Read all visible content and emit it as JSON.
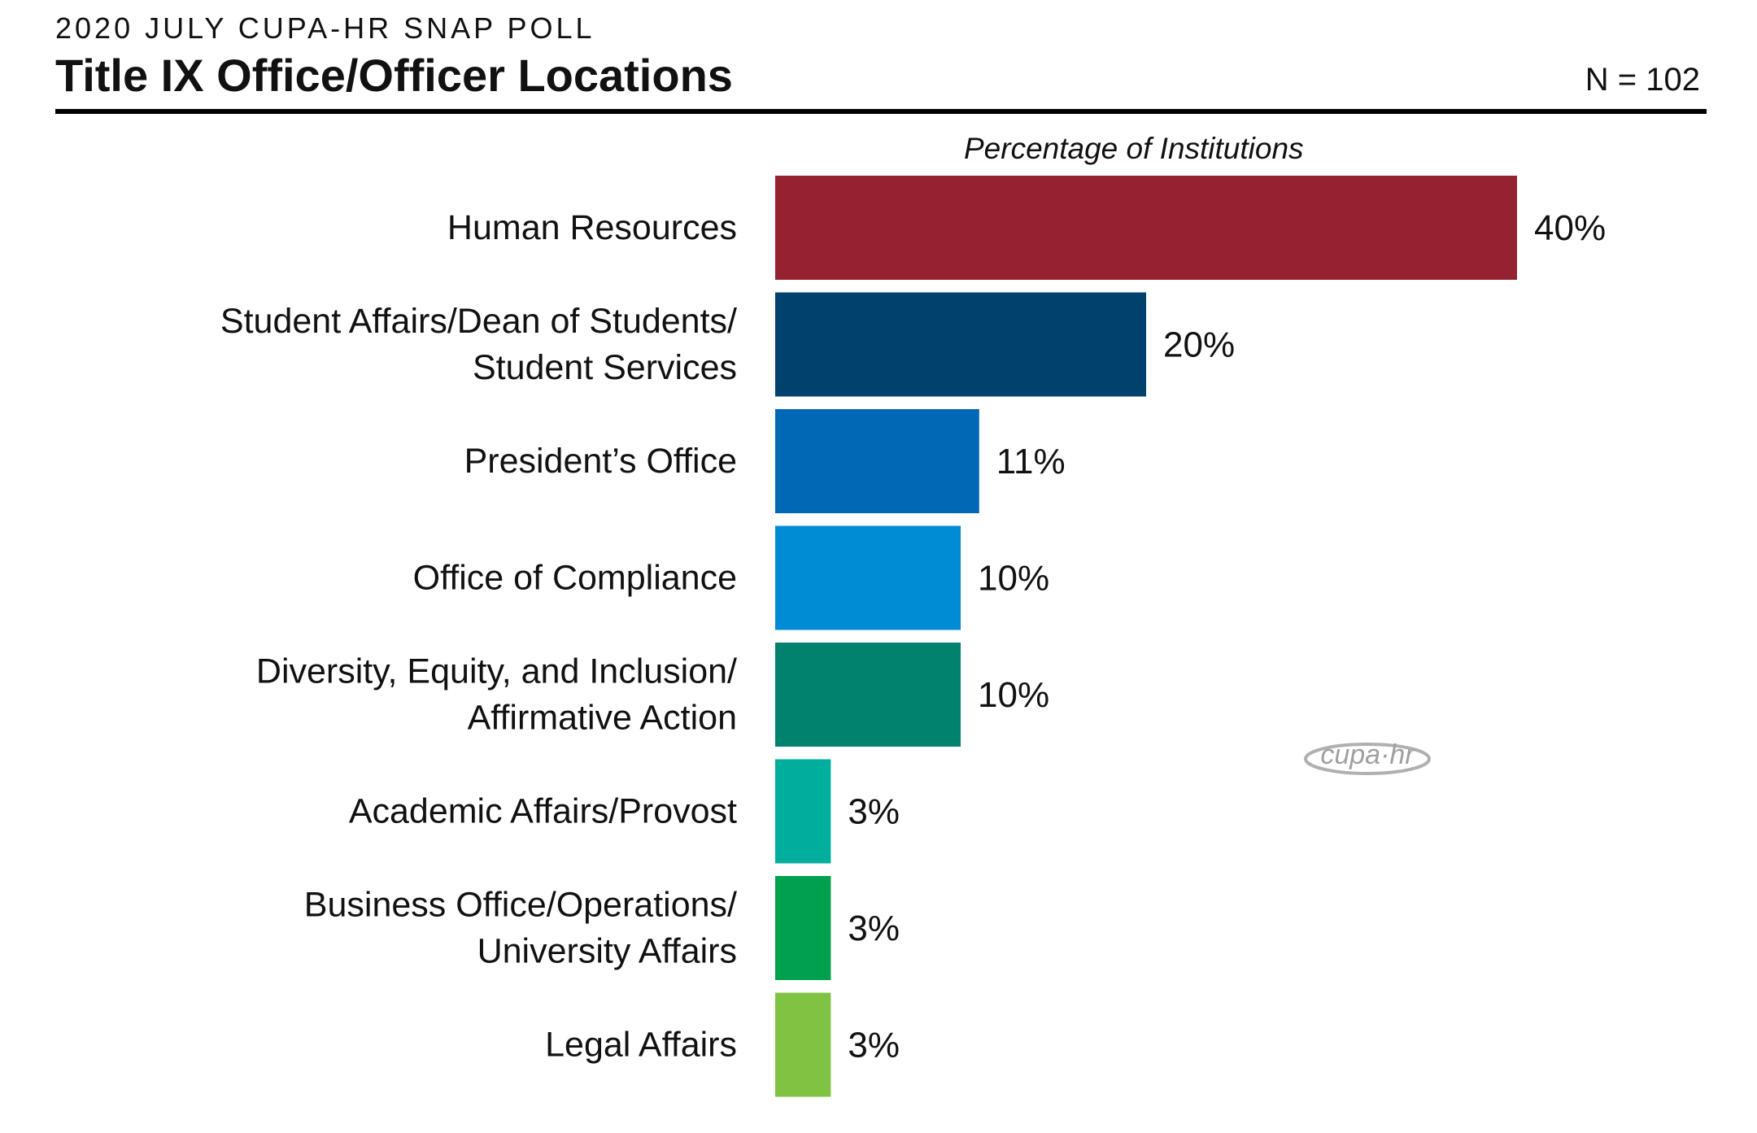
{
  "header": {
    "supertitle": "2020 JULY CUPA-HR SNAP POLL",
    "title": "Title IX Office/Officer Locations",
    "n_label": "N = 102"
  },
  "logo": {
    "text": "cupa·hr"
  },
  "chart_data": {
    "type": "bar",
    "orientation": "horizontal",
    "title": "Title IX Office/Officer Locations",
    "xlabel": "Percentage of Institutions",
    "ylabel": "",
    "xlim": [
      0,
      40
    ],
    "grid": false,
    "legend": "none",
    "categories": [
      [
        "Human Resources"
      ],
      [
        "Student Affairs/Dean of Students/",
        "Student Services"
      ],
      [
        "President’s Office"
      ],
      [
        "Office of Compliance"
      ],
      [
        "Diversity, Equity, and Inclusion/",
        "Affirmative Action"
      ],
      [
        "Academic Affairs/Provost"
      ],
      [
        "Business Office/Operations/",
        "University Affairs"
      ],
      [
        "Legal Affairs"
      ]
    ],
    "values": [
      40,
      20,
      11,
      10,
      10,
      3,
      3,
      3
    ],
    "value_labels": [
      "40%",
      "20%",
      "11%",
      "10%",
      "10%",
      "3%",
      "3%",
      "3%"
    ],
    "colors": [
      "#962131",
      "#00416E",
      "#0068B4",
      "#008CD5",
      "#00826E",
      "#00AE9E",
      "#00A14E",
      "#80C342"
    ]
  }
}
